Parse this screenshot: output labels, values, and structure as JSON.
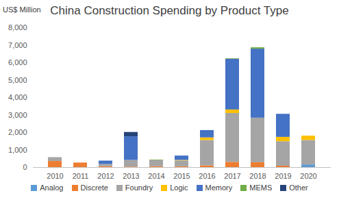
{
  "chart_data": {
    "type": "bar",
    "stacked": true,
    "grid": false,
    "legend": "bottom",
    "title": "China Construction Spending by Product Type",
    "y_label": "US$ Million",
    "categories": [
      "2010",
      "2011",
      "2012",
      "2013",
      "2014",
      "2015",
      "2016",
      "2017",
      "2018",
      "2019",
      "2020"
    ],
    "series": [
      {
        "name": "Analog",
        "color": "#5b9bd5",
        "values": [
          0,
          0,
          0,
          0,
          0,
          0,
          0,
          0,
          0,
          0,
          150
        ]
      },
      {
        "name": "Discrete",
        "color": "#ed7d31",
        "values": [
          350,
          260,
          50,
          30,
          50,
          50,
          100,
          300,
          280,
          80,
          0
        ]
      },
      {
        "name": "Foundry",
        "color": "#a5a5a5",
        "values": [
          220,
          0,
          130,
          380,
          350,
          330,
          1450,
          2800,
          2550,
          1400,
          1400
        ]
      },
      {
        "name": "Logic",
        "color": "#ffc000",
        "values": [
          0,
          0,
          0,
          0,
          0,
          30,
          150,
          200,
          0,
          250,
          250
        ]
      },
      {
        "name": "Memory",
        "color": "#4472c4",
        "values": [
          0,
          0,
          190,
          1350,
          0,
          250,
          420,
          2900,
          3950,
          1320,
          0
        ]
      },
      {
        "name": "MEMS",
        "color": "#70ad47",
        "values": [
          0,
          0,
          0,
          0,
          30,
          0,
          0,
          30,
          80,
          0,
          0
        ]
      },
      {
        "name": "Other",
        "color": "#264478",
        "values": [
          0,
          0,
          0,
          250,
          0,
          0,
          0,
          0,
          0,
          0,
          0
        ]
      }
    ],
    "ylim": [
      0,
      8000
    ],
    "yticks": [
      0,
      {
        "value": 1000,
        "label": "1,000"
      },
      {
        "value": 2000,
        "label": "2,000"
      },
      {
        "value": 3000,
        "label": "3,000"
      },
      {
        "value": 4000,
        "label": "4,000"
      },
      {
        "value": 5000,
        "label": "5,000"
      },
      {
        "value": 6000,
        "label": "6,000"
      },
      {
        "value": 7000,
        "label": "7,000"
      },
      {
        "value": 8000,
        "label": "8,000"
      }
    ]
  }
}
